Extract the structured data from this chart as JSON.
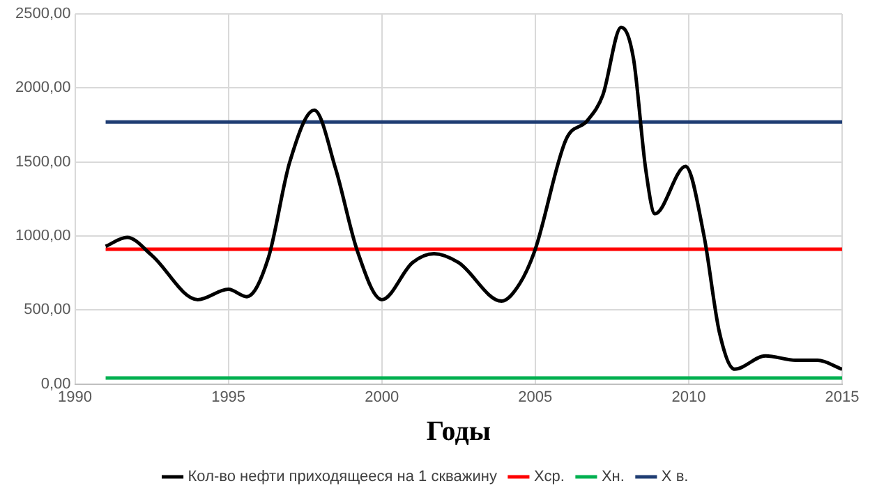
{
  "chart_data": {
    "type": "line",
    "xlabel": "Годы",
    "xlim": [
      1990,
      2015
    ],
    "xticks": [
      1990,
      1995,
      2000,
      2005,
      2010,
      2015
    ],
    "ylim": [
      0,
      2500
    ],
    "yticks": [
      {
        "value": 0,
        "label": "0,00"
      },
      {
        "value": 500,
        "label": "500,00"
      },
      {
        "value": 1000,
        "label": "1000,00"
      },
      {
        "value": 1500,
        "label": "1500,00"
      },
      {
        "value": 2000,
        "label": "2000,00"
      },
      {
        "value": 2500,
        "label": "2500,00"
      }
    ],
    "grid": true,
    "legend": "bottom",
    "marker": "none",
    "line_style": "solid",
    "series": [
      {
        "name": "Кол-во нефти приходящееся на 1 скважину",
        "color": "#000000",
        "x": [
          1991,
          1991.7,
          1992.5,
          1994,
          1995,
          1995.6,
          1996.3,
          1997,
          1997.8,
          1998.5,
          1999.2,
          2000,
          2001,
          2001.7,
          2002.5,
          2003.9,
          2004.5,
          2005,
          2006,
          2006.7,
          2007.2,
          2007.8,
          2008.2,
          2008.6,
          2008.9,
          2009.9,
          2010.5,
          2011,
          2011.5,
          2012.5,
          2013.5,
          2014.2,
          2015
        ],
        "values": [
          930,
          990,
          870,
          570,
          640,
          590,
          850,
          1500,
          1850,
          1450,
          900,
          570,
          820,
          880,
          820,
          560,
          680,
          910,
          1650,
          1780,
          1950,
          2410,
          2200,
          1450,
          1150,
          1470,
          1000,
          350,
          100,
          190,
          160,
          160,
          100
        ]
      },
      {
        "name": "Хср.",
        "color": "#ff0000",
        "x": [
          1991,
          2015
        ],
        "values": [
          910,
          910
        ]
      },
      {
        "name": "Хн.",
        "color": "#00b050",
        "x": [
          1991,
          2015
        ],
        "values": [
          40,
          40
        ]
      },
      {
        "name": "Х в.",
        "color": "#1f3d73",
        "x": [
          1991,
          2015
        ],
        "values": [
          1770,
          1770
        ]
      }
    ]
  }
}
